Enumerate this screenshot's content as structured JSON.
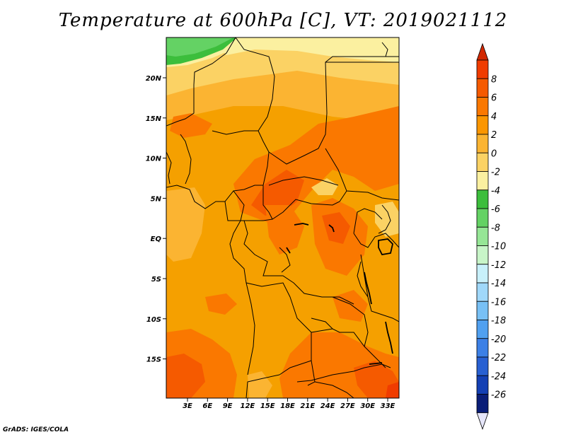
{
  "title": "Temperature at 600hPa [C], VT: 2019021112",
  "credit": "GrADS: IGES/COLA",
  "map": {
    "lat_labels": [
      "20N",
      "15N",
      "10N",
      "5N",
      "EQ",
      "5S",
      "10S",
      "15S"
    ],
    "lon_labels": [
      "3E",
      "6E",
      "9E",
      "12E",
      "15E",
      "18E",
      "21E",
      "24E",
      "27E",
      "30E",
      "33E"
    ]
  },
  "colorbar": {
    "levels": [
      "8",
      "6",
      "4",
      "2",
      "0",
      "-2",
      "-4",
      "-6",
      "-8",
      "-10",
      "-12",
      "-14",
      "-16",
      "-18",
      "-20",
      "-22",
      "-24",
      "-26"
    ],
    "colors": [
      "#f03c00",
      "#f55a00",
      "#fa7800",
      "#fb9600",
      "#fbb432",
      "#fbd264",
      "#fbf0a0",
      "#3cbe3c",
      "#64d264",
      "#96e696",
      "#c8f5c8",
      "#c8f0fa",
      "#a0d8fa",
      "#78c0f5",
      "#50a0f0",
      "#3c80e6",
      "#2860d2",
      "#1440b4",
      "#0a1e78"
    ],
    "top_color": "#d22800",
    "bottom_color": "#e6e6fa"
  }
}
